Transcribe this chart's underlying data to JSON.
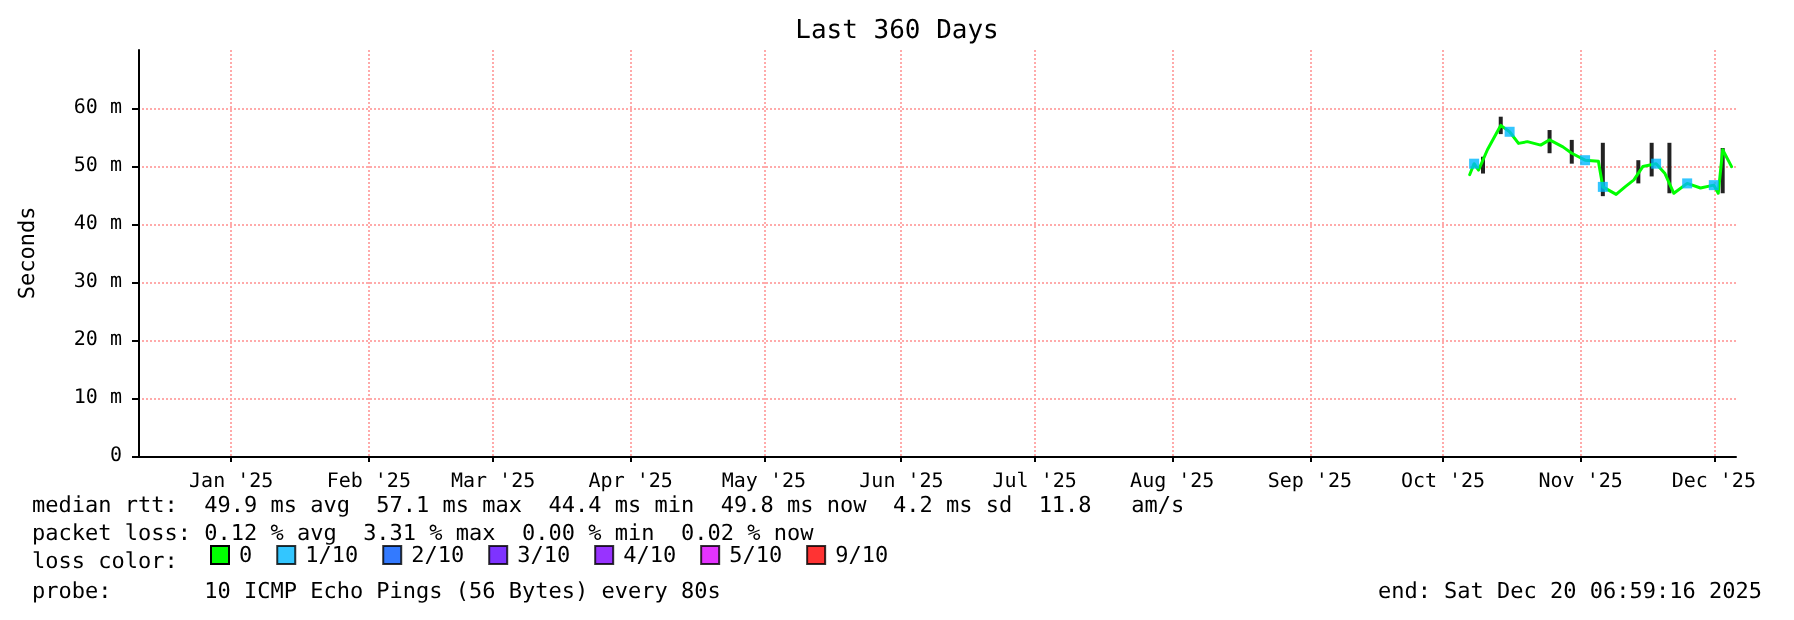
{
  "chart_data": {
    "type": "line",
    "title": "Last 360 Days",
    "ylabel": "Seconds",
    "xlim": [
      "2024-12-25",
      "2025-12-20"
    ],
    "xticks": [
      {
        "value": "2025-01-15",
        "label": "Jan '25"
      },
      {
        "value": "2025-02-15",
        "label": "Feb '25"
      },
      {
        "value": "2025-03-15",
        "label": "Mar '25"
      },
      {
        "value": "2025-04-15",
        "label": "Apr '25"
      },
      {
        "value": "2025-05-15",
        "label": "May '25"
      },
      {
        "value": "2025-06-15",
        "label": "Jun '25"
      },
      {
        "value": "2025-07-15",
        "label": "Jul '25"
      },
      {
        "value": "2025-08-15",
        "label": "Aug '25"
      },
      {
        "value": "2025-09-15",
        "label": "Sep '25"
      },
      {
        "value": "2025-10-15",
        "label": "Oct '25"
      },
      {
        "value": "2025-11-15",
        "label": "Nov '25"
      },
      {
        "value": "2025-12-15",
        "label": "Dec '25"
      }
    ],
    "ylim": [
      0,
      70
    ],
    "yticks": [
      0,
      {
        "value": 10,
        "label": "10 m"
      },
      {
        "value": 20,
        "label": "20 m"
      },
      {
        "value": 30,
        "label": "30 m"
      },
      {
        "value": 40,
        "label": "40 m"
      },
      {
        "value": 50,
        "label": "50 m"
      },
      {
        "value": 60,
        "label": "60 m"
      }
    ],
    "grid": true,
    "legend": "bottom left",
    "legend_title": "loss color:",
    "marker": "none",
    "series": [
      {
        "type": "bar",
        "color": "#222222",
        "x": [
          "2025-10-24",
          "2025-10-28",
          "2025-11-08",
          "2025-11-13",
          "2025-11-20",
          "2025-11-28",
          "2025-12-01",
          "2025-12-05",
          "2025-12-17"
        ],
        "base": [
          48.7,
          55.5,
          52.2,
          50.4,
          44.8,
          47.0,
          48.2,
          45.3,
          45.3
        ],
        "values": [
          2.9,
          3.0,
          4.0,
          4.1,
          9.2,
          4.0,
          5.8,
          8.7,
          7.8
        ]
      },
      {
        "name": "0",
        "color": "#00ff00",
        "x": [
          "2025-10-21",
          "2025-10-22",
          "2025-10-23",
          "2025-10-25",
          "2025-10-27",
          "2025-10-28",
          "2025-10-30",
          "2025-11-01",
          "2025-11-03",
          "2025-11-06",
          "2025-11-08",
          "2025-11-11",
          "2025-11-13",
          "2025-11-16",
          "2025-11-19",
          "2025-11-20",
          "2025-11-23",
          "2025-11-25",
          "2025-11-27",
          "2025-11-29",
          "2025-12-02",
          "2025-12-04",
          "2025-12-06",
          "2025-12-09",
          "2025-12-12",
          "2025-12-15",
          "2025-12-16",
          "2025-12-17",
          "2025-12-19"
        ],
        "values": [
          48.5,
          50.4,
          49.3,
          52.8,
          55.6,
          57.0,
          55.9,
          53.9,
          54.2,
          53.6,
          54.5,
          53.3,
          52.2,
          51.0,
          50.8,
          46.4,
          45.1,
          46.4,
          47.6,
          49.9,
          50.4,
          48.7,
          45.3,
          47.0,
          46.2,
          46.7,
          45.3,
          52.8,
          49.9
        ]
      },
      {
        "type": "scatter",
        "name": "1/10",
        "color": "#00b8ff",
        "marker": "square",
        "x": [
          "2025-10-22",
          "2025-10-30",
          "2025-11-16",
          "2025-11-20",
          "2025-12-02",
          "2025-12-09",
          "2025-12-15"
        ],
        "values": [
          50.4,
          55.9,
          51.0,
          46.4,
          50.4,
          47.0,
          46.7
        ]
      },
      {
        "type": "scatter",
        "name": "2/10",
        "color": "#0059ff"
      },
      {
        "type": "scatter",
        "name": "3/10",
        "color": "#5e00ff"
      },
      {
        "type": "scatter",
        "name": "4/10",
        "color": "#7e00ff"
      },
      {
        "type": "scatter",
        "name": "5/10",
        "color": "#dd00ff"
      },
      {
        "type": "scatter",
        "name": "9/10",
        "color": "#ff0000"
      }
    ],
    "annotations": [
      "median rtt:  49.9 ms avg  57.1 ms max  44.4 ms min  49.8 ms now  4.2 ms sd  11.8   am/s",
      "packet loss: 0.12 % avg  3.31 % max  0.00 % min  0.02 % now",
      "probe:       10 ICMP Echo Pings (56 Bytes) every 80s",
      "end: Sat Dec 20 06:59:16 2025"
    ]
  }
}
